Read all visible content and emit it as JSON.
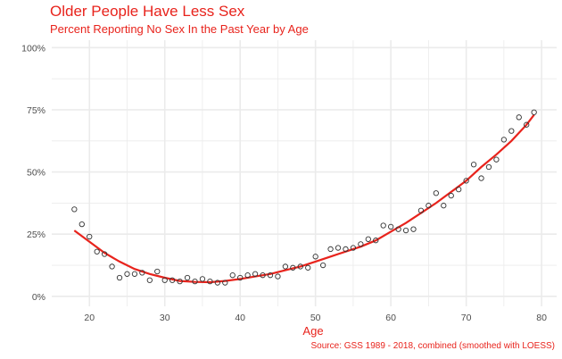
{
  "chart_data": {
    "type": "scatter",
    "title": "Older People Have Less Sex",
    "subtitle": "Percent Reporting No Sex In the Past Year by Age",
    "xlabel": "Age",
    "ylabel": "",
    "caption": "Source: GSS 1989 - 2018, combined (smoothed with LOESS)",
    "xlim": [
      15,
      82
    ],
    "ylim": [
      -0.04,
      1.03
    ],
    "x_ticks": [
      20,
      30,
      40,
      50,
      60,
      70,
      80
    ],
    "x_tick_labels": [
      "20",
      "30",
      "40",
      "50",
      "60",
      "70",
      "80"
    ],
    "y_ticks": [
      0,
      0.25,
      0.5,
      0.75,
      1.0
    ],
    "y_tick_labels": [
      "0%",
      "25%",
      "50%",
      "75%",
      "100%"
    ],
    "grid": true,
    "colors": {
      "accent": "#e8231c",
      "points": "#333333",
      "grid": "#ebebeb",
      "ticks": "#4d4d4d"
    },
    "points": {
      "x": [
        18,
        19,
        20,
        21,
        22,
        23,
        24,
        25,
        26,
        27,
        28,
        29,
        30,
        31,
        32,
        33,
        34,
        35,
        36,
        37,
        38,
        39,
        40,
        41,
        42,
        43,
        44,
        45,
        46,
        47,
        48,
        49,
        50,
        51,
        52,
        53,
        54,
        55,
        56,
        57,
        58,
        59,
        60,
        61,
        62,
        63,
        64,
        65,
        66,
        67,
        68,
        69,
        70,
        71,
        72,
        73,
        74,
        75,
        76,
        77,
        78,
        79
      ],
      "y": [
        0.35,
        0.29,
        0.24,
        0.18,
        0.17,
        0.12,
        0.075,
        0.09,
        0.09,
        0.095,
        0.065,
        0.1,
        0.065,
        0.065,
        0.06,
        0.075,
        0.06,
        0.07,
        0.06,
        0.055,
        0.055,
        0.085,
        0.075,
        0.085,
        0.09,
        0.085,
        0.085,
        0.08,
        0.12,
        0.115,
        0.12,
        0.115,
        0.16,
        0.125,
        0.19,
        0.195,
        0.19,
        0.195,
        0.21,
        0.23,
        0.225,
        0.285,
        0.28,
        0.27,
        0.265,
        0.27,
        0.345,
        0.365,
        0.415,
        0.365,
        0.405,
        0.43,
        0.465,
        0.53,
        0.475,
        0.52,
        0.55,
        0.63,
        0.665,
        0.72,
        0.69,
        0.74
      ]
    },
    "smooth": {
      "x": [
        18,
        20,
        22,
        24,
        26,
        28,
        30,
        32,
        34,
        36,
        38,
        40,
        42,
        44,
        46,
        48,
        50,
        52,
        54,
        56,
        58,
        60,
        62,
        64,
        66,
        68,
        70,
        72,
        74,
        76,
        78,
        79
      ],
      "y": [
        0.265,
        0.22,
        0.175,
        0.14,
        0.11,
        0.09,
        0.075,
        0.062,
        0.058,
        0.057,
        0.062,
        0.07,
        0.08,
        0.09,
        0.105,
        0.12,
        0.14,
        0.16,
        0.18,
        0.2,
        0.225,
        0.26,
        0.295,
        0.335,
        0.375,
        0.42,
        0.465,
        0.52,
        0.57,
        0.625,
        0.69,
        0.73
      ]
    }
  }
}
